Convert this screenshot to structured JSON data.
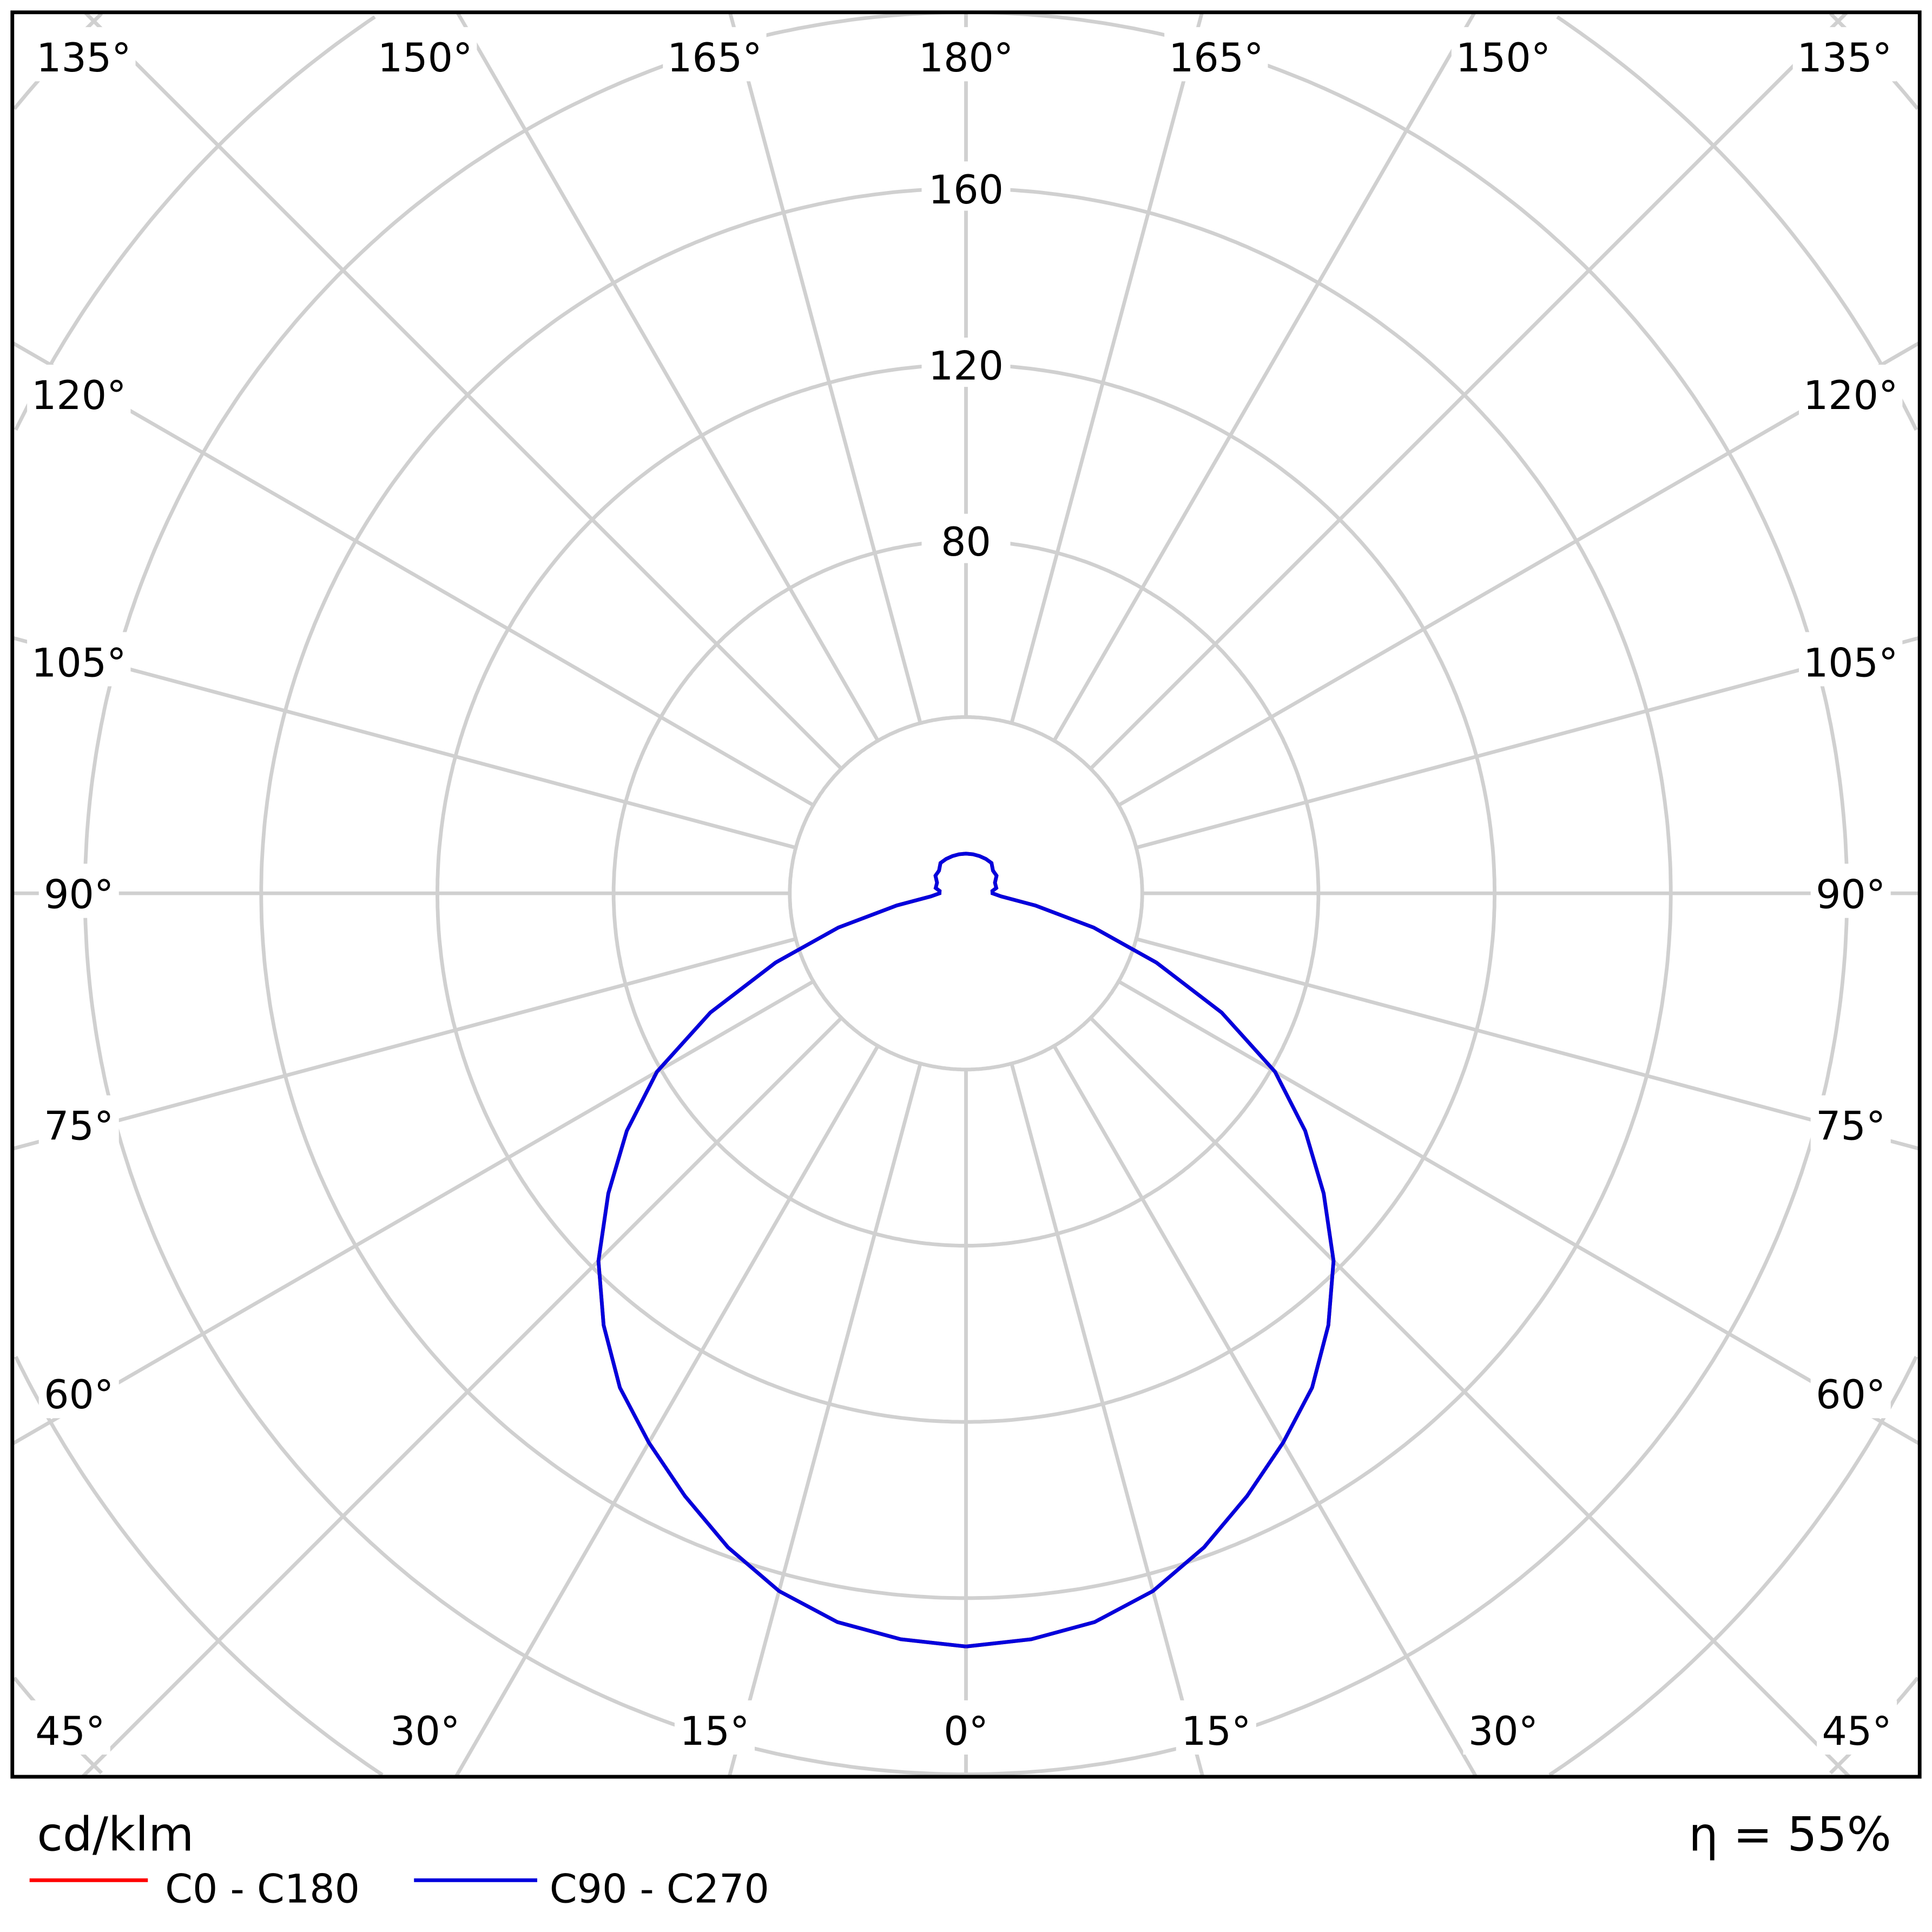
{
  "chart_data": {
    "type": "polar-line",
    "unit_label": "cd/klm",
    "efficiency_label": "η = 55%",
    "radial_ticks": [
      80,
      120,
      160
    ],
    "radial_grid": [
      40,
      80,
      120,
      160,
      200,
      240,
      280
    ],
    "angle_labels": {
      "top": [
        "135°",
        "150°",
        "165°",
        "180°",
        "165°",
        "150°",
        "135°"
      ],
      "left": [
        "120°",
        "105°",
        "90°",
        "75°",
        "60°"
      ],
      "right": [
        "120°",
        "105°",
        "90°",
        "75°",
        "60°"
      ],
      "bottom": [
        "45°",
        "30°",
        "15°",
        "0°",
        "15°",
        "30°",
        "45°"
      ]
    },
    "angles_deg": [
      0,
      5,
      10,
      15,
      20,
      25,
      30,
      35,
      40,
      45,
      50,
      55,
      60,
      65,
      70,
      75,
      80,
      85,
      90,
      95,
      100,
      110,
      120,
      130,
      140,
      150,
      160,
      170,
      180
    ],
    "series": [
      {
        "name": "C0 - C180",
        "color": "#ff0000",
        "values": [
          171,
          170,
          168,
          164,
          158,
          151,
          144,
          137,
          128,
          118,
          106,
          94,
          81,
          64,
          46,
          30,
          16,
          8,
          6,
          6,
          7,
          7,
          8,
          8,
          9,
          9,
          9,
          9,
          9
        ]
      },
      {
        "name": "C90 - C270",
        "color": "#0000dd",
        "values": [
          171,
          170,
          168,
          164,
          158,
          151,
          144,
          137,
          128,
          118,
          106,
          94,
          81,
          64,
          46,
          30,
          16,
          8,
          6,
          6,
          7,
          7,
          8,
          8,
          9,
          9,
          9,
          9,
          9
        ]
      }
    ],
    "grid_color": "#d0d0d0"
  }
}
